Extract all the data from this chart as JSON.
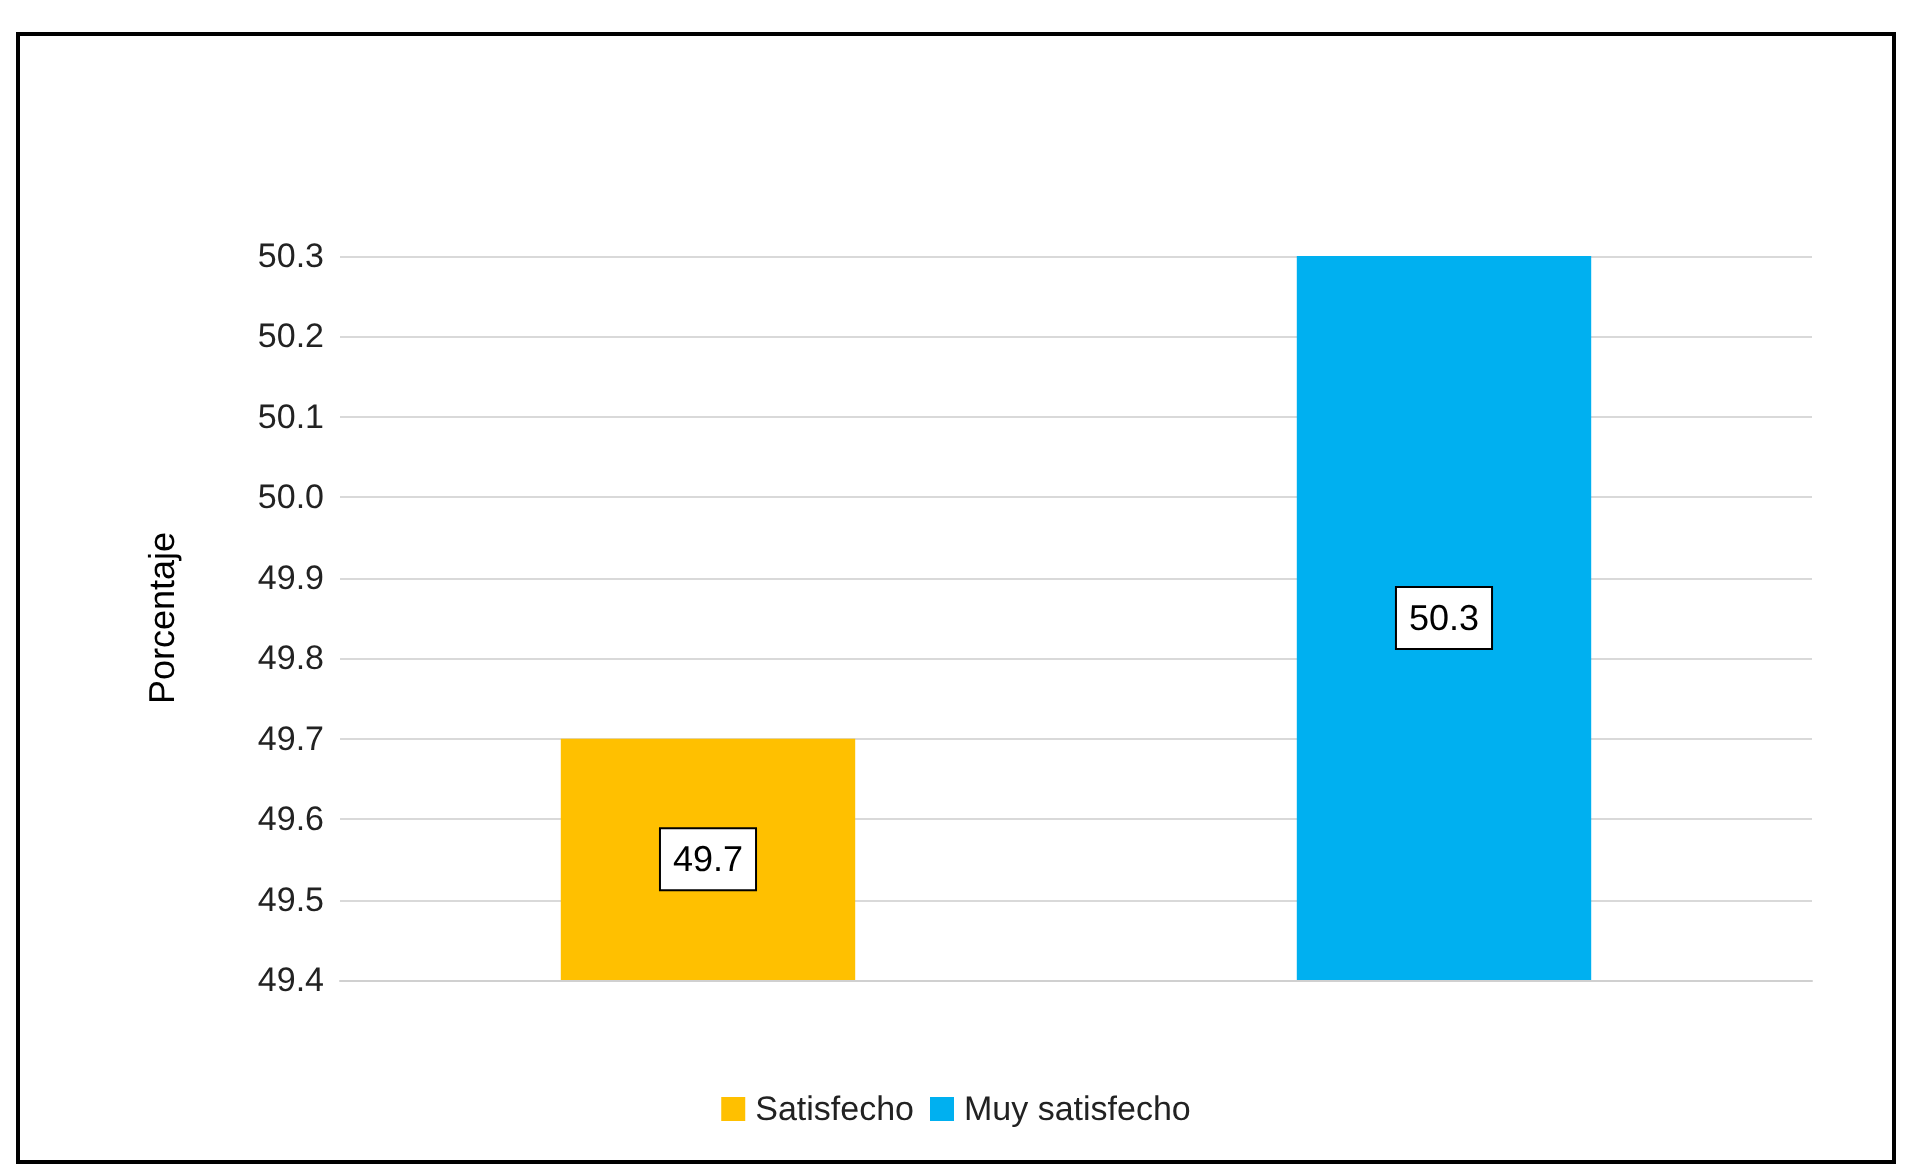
{
  "chart_data": {
    "type": "bar",
    "ylabel": "Porcentaje",
    "categories": [
      null,
      null
    ],
    "series": [
      {
        "name": "Satisfecho",
        "color": "#ffc000",
        "values": [
          49.7,
          null
        ]
      },
      {
        "name": "Muy satisfecho",
        "color": "#00b0f0",
        "values": [
          null,
          50.3
        ]
      }
    ],
    "ylim": [
      49.4,
      50.3
    ],
    "yticks": [
      49.4,
      49.5,
      49.6,
      49.7,
      49.8,
      49.9,
      {
        "value": 50,
        "label": "50.0"
      },
      50.1,
      50.2,
      50.3
    ],
    "grid": "y",
    "legend": "bottom",
    "data_labels": true
  }
}
